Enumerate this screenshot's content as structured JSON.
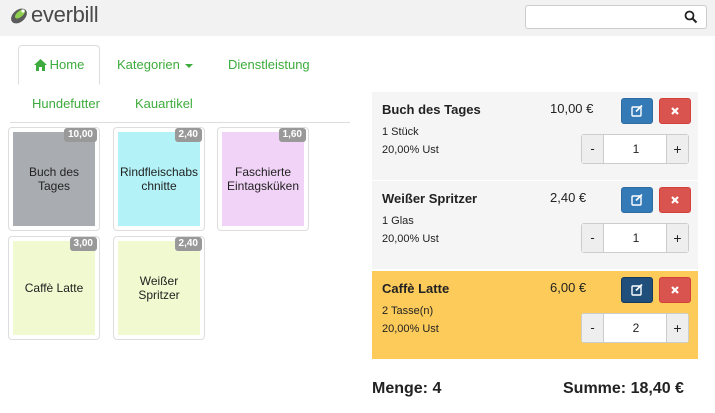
{
  "header": {
    "logo_text": "everbill",
    "search": {
      "value": "",
      "placeholder": ""
    }
  },
  "tabs": [
    {
      "label": "Home",
      "active": true
    },
    {
      "label": "Kategorien"
    },
    {
      "label": "Dienstleistung"
    },
    {
      "label": "Hundefutter"
    },
    {
      "label": "Kauartikel"
    }
  ],
  "products": [
    {
      "name": "Buch des Tages",
      "price": "10,00",
      "color": "#a9adb1"
    },
    {
      "name": "Rindfleischabs chnitte",
      "price": "2,40",
      "color": "#b3f3f7"
    },
    {
      "name": "Faschierte Eintagsküken",
      "price": "1,60",
      "color": "#f1d3f7"
    },
    {
      "name": "Caffè Latte",
      "price": "3,00",
      "color": "#f0f9cf"
    },
    {
      "name": "Weißer Spritzer",
      "price": "2,40",
      "color": "#f0f9cf"
    }
  ],
  "cart": [
    {
      "name": "Buch des Tages",
      "unit": "1 Stück",
      "tax": "20,00% Ust",
      "price": "10,00 €",
      "qty": "1",
      "highlight": false
    },
    {
      "name": "Weißer Spritzer",
      "unit": "1 Glas",
      "tax": "20,00% Ust",
      "price": "2,40 €",
      "qty": "1",
      "highlight": false
    },
    {
      "name": "Caffè Latte",
      "unit": "2 Tasse(n)",
      "tax": "20,00% Ust",
      "price": "6,00 €",
      "qty": "2",
      "highlight": true
    }
  ],
  "qty_controls": {
    "minus": "-",
    "plus": "+"
  },
  "totals": {
    "quantity": "Menge: 4",
    "sum": "Summe: 18,40 €"
  },
  "colors": {
    "accent": "#3dab3d",
    "edit": "#337ab7",
    "delete": "#d9534f",
    "highlight": "#fccb5a",
    "row_bg": "#f5f5f5"
  }
}
